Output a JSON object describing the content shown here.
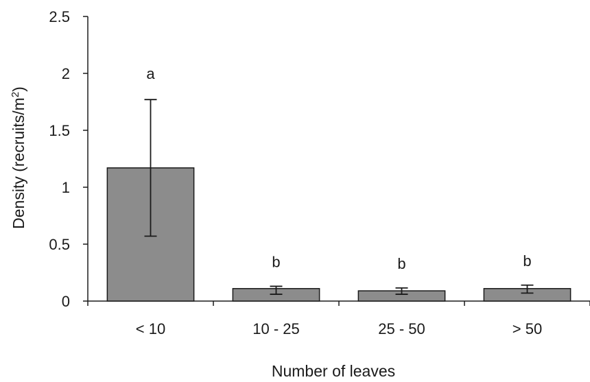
{
  "chart_data": {
    "type": "bar",
    "categories": [
      "< 10",
      "10 - 25",
      "25 - 50",
      "> 50"
    ],
    "values": [
      1.17,
      0.11,
      0.09,
      0.11
    ],
    "error_upper": [
      1.77,
      0.13,
      0.115,
      0.14
    ],
    "error_lower": [
      0.57,
      0.06,
      0.06,
      0.07
    ],
    "significance_letters": [
      "a",
      "b",
      "b",
      "b"
    ],
    "title": "",
    "xlabel": "Number of leaves",
    "ylabel_main": "Density (recruits/m",
    "ylabel_sup": "2",
    "ylabel_close": ")",
    "ylim": [
      0,
      2.5
    ],
    "yticks": [
      0,
      0.5,
      1,
      1.5,
      2,
      2.5
    ],
    "ytick_labels": [
      "0",
      "0.5",
      "1",
      "1.5",
      "2",
      "2.5"
    ],
    "grid": false,
    "legend": "none",
    "bar_color": "#8c8c8c",
    "bar_edge_color": "#1a1a1a"
  }
}
